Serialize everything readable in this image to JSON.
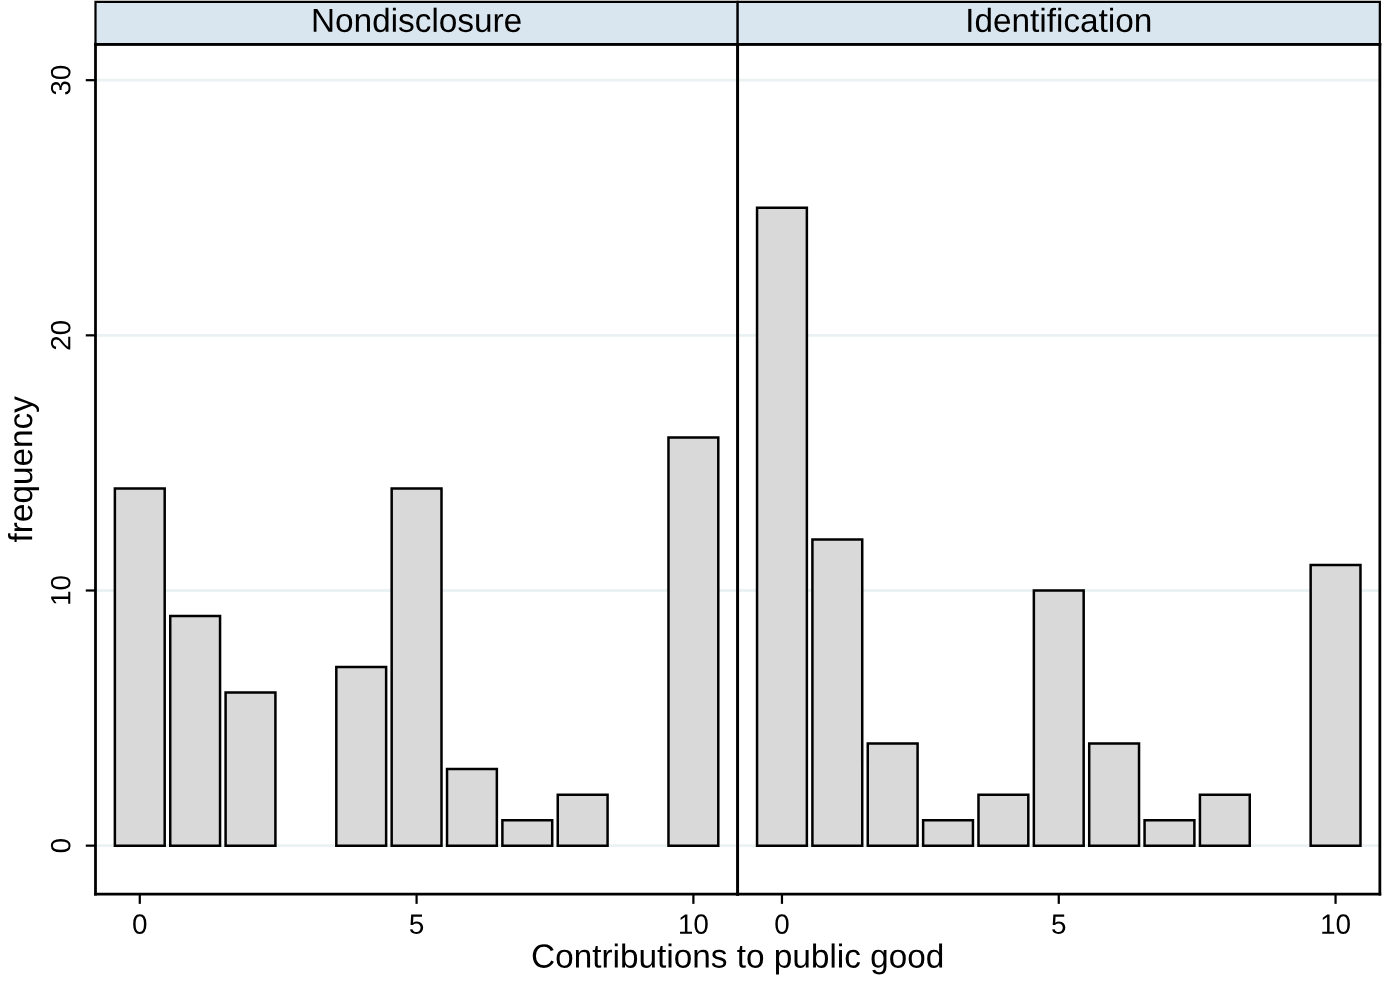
{
  "chart_data": [
    {
      "type": "bar",
      "title": "Nondisclosure",
      "xlabel": "Contributions to public good",
      "ylabel": "frequency",
      "x": [
        0,
        1,
        2,
        3,
        4,
        5,
        6,
        7,
        8,
        9,
        10
      ],
      "series": [
        {
          "color": "#d9d9d9",
          "values": [
            14,
            9,
            6,
            null,
            7,
            14,
            3,
            1,
            2,
            null,
            16
          ]
        }
      ],
      "xlim": [
        -0.8,
        10.8
      ],
      "xticks": [
        0,
        5,
        10
      ],
      "ylim": [
        -1.9,
        31.4
      ],
      "yticks": [
        0,
        10,
        20,
        30
      ],
      "grid": "y"
    },
    {
      "type": "bar",
      "title": "Identification",
      "x": [
        0,
        1,
        2,
        3,
        4,
        5,
        6,
        7,
        8,
        9,
        10
      ],
      "series": [
        {
          "color": "#d9d9d9",
          "values": [
            25,
            12,
            4,
            1,
            2,
            10,
            4,
            1,
            2,
            null,
            11
          ]
        }
      ],
      "xlim": [
        -0.8,
        10.8
      ],
      "xticks": [
        0,
        5,
        10
      ],
      "ylim": [
        -1.9,
        31.4
      ],
      "yticks": [
        0,
        10,
        20,
        30
      ],
      "grid": "y",
      "tick_labels": "x"
    }
  ]
}
